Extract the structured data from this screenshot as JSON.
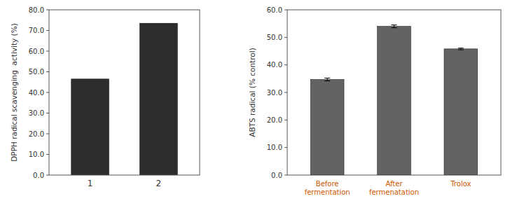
{
  "chart_data": [
    {
      "type": "bar",
      "categories": [
        "1",
        "2"
      ],
      "values": [
        46.5,
        73.5
      ],
      "color": "#2d2d2d",
      "ylim": [
        0,
        80
      ],
      "yticks": [
        {
          "value": 0,
          "label": "0.0"
        },
        {
          "value": 10,
          "label": "10.0"
        },
        {
          "value": 20,
          "label": "20.0"
        },
        {
          "value": 30,
          "label": "30.0"
        },
        {
          "value": 40,
          "label": "40.0"
        },
        {
          "value": 50,
          "label": "50.0"
        },
        {
          "value": 60,
          "label": "60.0"
        },
        {
          "value": 70,
          "label": "70.0"
        },
        {
          "value": 80,
          "label": "80.0"
        }
      ],
      "ylabel": "DPPH radical scavenging  activity (%)",
      "grid": false
    },
    {
      "type": "bar",
      "categories": [
        "Before\nfermentation",
        "After\nfermenatation",
        "Trolox"
      ],
      "values": [
        34.7,
        54.0,
        45.8
      ],
      "errors": [
        0.5,
        0.5,
        0.3
      ],
      "color": "#636363",
      "ylim": [
        0,
        60
      ],
      "yticks": [
        {
          "value": 0,
          "label": "0.0"
        },
        {
          "value": 10,
          "label": "10.0"
        },
        {
          "value": 20,
          "label": "20.0"
        },
        {
          "value": 30,
          "label": "30.0"
        },
        {
          "value": 40,
          "label": "40.0"
        },
        {
          "value": 50,
          "label": "50.0"
        },
        {
          "value": 60,
          "label": "60.0"
        }
      ],
      "ylabel": "ABTS radical (% control)",
      "grid": false
    }
  ]
}
